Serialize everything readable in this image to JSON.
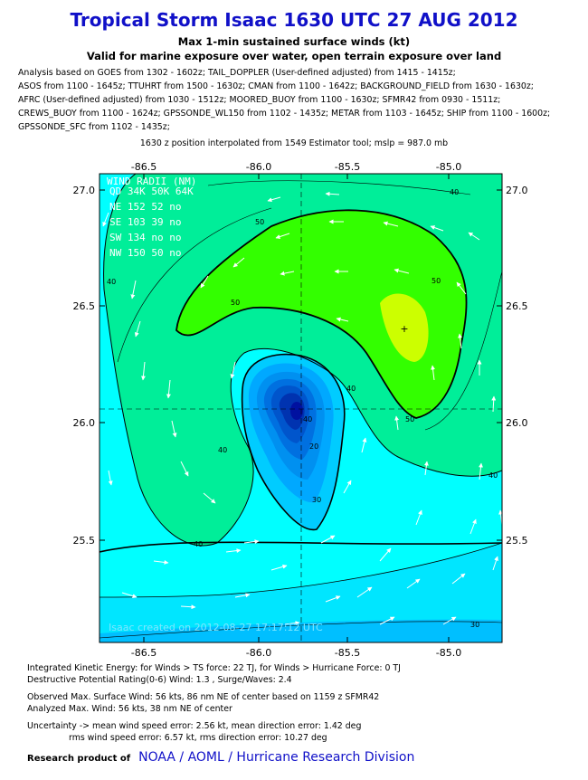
{
  "header": {
    "title": "Tropical Storm Isaac 1630 UTC 27 AUG 2012",
    "subtitle1": "Max 1-min sustained surface winds (kt)",
    "subtitle2": "Valid for marine exposure over water, open terrain exposure over land"
  },
  "analysis_lines": [
    "Analysis based on GOES from 1302 - 1602z; TAIL_DOPPLER (User-defined adjusted) from 1415 - 1415z;",
    "ASOS from 1100 - 1645z; TTUHRT from 1500 - 1630z; CMAN from 1100 - 1642z; BACKGROUND_FIELD from 1630 - 1630z;",
    "AFRC (User-defined adjusted) from 1030 - 1512z; MOORED_BUOY from 1100 - 1630z; SFMR42 from 0930 - 1511z;",
    "CREWS_BUOY from 1100 - 1624z; GPSSONDE_WL150 from 1102 - 1435z; METAR from 1103 - 1645z; SHIP from 1100 - 1600z;",
    "GPSSONDE_SFC from 1102 - 1435z;"
  ],
  "position_line": "1630 z position interpolated from 1549 Estimator tool; mslp = 987.0 mb",
  "map": {
    "x_ticks": [
      "-86.5",
      "-86.0",
      "-85.5",
      "-85.0"
    ],
    "y_ticks": [
      "27.0",
      "26.5",
      "26.0",
      "25.5"
    ],
    "contour_labels": [
      "40",
      "50",
      "50",
      "50",
      "40",
      "40",
      "50",
      "40",
      "40",
      "30",
      "20",
      "40",
      "30",
      "40"
    ],
    "wind_radii": {
      "title": "WIND RADII (NM)",
      "header": "QD 34K 50K 64K",
      "rows": [
        "NE 152  52  no",
        "SE 103  39  no",
        "SW 134  no  no",
        "NW 150  50  no"
      ]
    },
    "bottom_stamp": "Isaac    created on 2012-08-27 17:17:12 UTC",
    "colors": {
      "cyan": "#00ffff",
      "light_blue": "#00e6ff",
      "sky": "#00bfff",
      "teal_green": "#00e6a0",
      "sea_green": "#00ee66",
      "green": "#33ff00",
      "yellow_green": "#ccff00"
    }
  },
  "footer": {
    "ike": "Integrated Kinetic Energy: for Winds > TS force: 22 TJ, for Winds > Hurricane Force: 0 TJ",
    "dpr": "Destructive Potential Rating(0-6)  Wind: 1.3 , Surge/Waves: 2.4",
    "observed": "Observed Max. Surface Wind: 56 kts, 86 nm NE of center based on 1159 z SFMR42",
    "analyzed": "Analyzed Max. Wind: 56 kts, 38 nm  NE of center",
    "uncertainty1": "Uncertainty -> mean wind speed error: 2.56 kt, mean direction error: 1.42 deg",
    "uncertainty2": "rms wind speed error: 6.57 kt, rms direction error: 10.27 deg",
    "credit_label": "Research product of",
    "credit_org": "NOAA  /  AOML  /  Hurricane Research Division"
  }
}
